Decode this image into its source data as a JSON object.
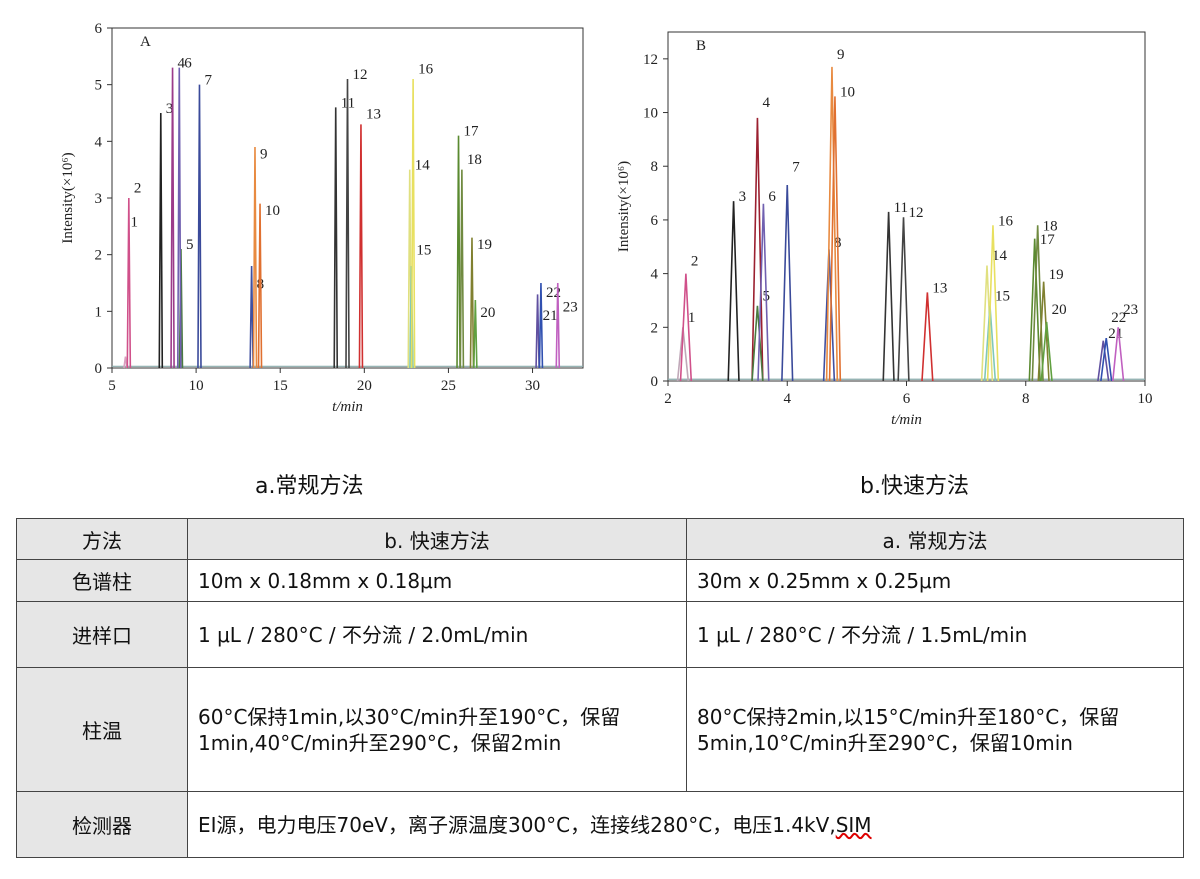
{
  "captions": {
    "a": "a.常规方法",
    "b": "b.快速方法"
  },
  "chart_data": [
    {
      "type": "line",
      "panel_label": "A",
      "ylabel": "Intensity(×10⁶)",
      "xlabel": "t/min",
      "xlim": [
        5,
        33
      ],
      "ylim": [
        0,
        6
      ],
      "xticks": [
        5,
        10,
        15,
        20,
        25,
        30
      ],
      "yticks": [
        0,
        1,
        2,
        3,
        4,
        5,
        6
      ],
      "peaks": [
        {
          "label": "1",
          "x": 5.8,
          "y": 0.2,
          "label_y": 2.5,
          "color": "#d9a0c0"
        },
        {
          "label": "2",
          "x": 6.0,
          "y": 3.0,
          "label_y": 3.1,
          "color": "#d0508a"
        },
        {
          "label": "3",
          "x": 7.9,
          "y": 4.5,
          "label_y": 4.5,
          "color": "#222222"
        },
        {
          "label": "4",
          "x": 8.6,
          "y": 5.3,
          "label_y": 5.3,
          "color": "#9b3b8a"
        },
        {
          "label": "5",
          "x": 9.1,
          "y": 2.1,
          "label_y": 2.1,
          "color": "#4a7a40"
        },
        {
          "label": "6",
          "x": 9.0,
          "y": 5.3,
          "label_y": 5.3,
          "color": "#7060b0"
        },
        {
          "label": "7",
          "x": 10.2,
          "y": 5.0,
          "label_y": 5.0,
          "color": "#3a4a9a"
        },
        {
          "label": "8",
          "x": 13.3,
          "y": 1.8,
          "label_y": 1.4,
          "color": "#4050a0"
        },
        {
          "label": "9",
          "x": 13.5,
          "y": 3.9,
          "label_y": 3.7,
          "color": "#e88a40"
        },
        {
          "label": "10",
          "x": 13.8,
          "y": 2.9,
          "label_y": 2.7,
          "color": "#e07030"
        },
        {
          "label": "11",
          "x": 18.3,
          "y": 4.6,
          "label_y": 4.6,
          "color": "#333333"
        },
        {
          "label": "12",
          "x": 19.0,
          "y": 5.1,
          "label_y": 5.1,
          "color": "#444444"
        },
        {
          "label": "13",
          "x": 19.8,
          "y": 4.3,
          "label_y": 4.4,
          "color": "#d03030"
        },
        {
          "label": "14",
          "x": 22.7,
          "y": 3.5,
          "label_y": 3.5,
          "color": "#e0e080"
        },
        {
          "label": "15",
          "x": 22.8,
          "y": 1.8,
          "label_y": 2.0,
          "color": "#80c8b8"
        },
        {
          "label": "16",
          "x": 22.9,
          "y": 5.1,
          "label_y": 5.2,
          "color": "#e8e060"
        },
        {
          "label": "17",
          "x": 25.6,
          "y": 4.1,
          "label_y": 4.1,
          "color": "#5a8a30"
        },
        {
          "label": "18",
          "x": 25.8,
          "y": 3.5,
          "label_y": 3.6,
          "color": "#708a40"
        },
        {
          "label": "19",
          "x": 26.4,
          "y": 2.3,
          "label_y": 2.1,
          "color": "#808030"
        },
        {
          "label": "20",
          "x": 26.6,
          "y": 1.2,
          "label_y": 0.9,
          "color": "#60a040"
        },
        {
          "label": "21",
          "x": 30.3,
          "y": 1.3,
          "label_y": 0.85,
          "color": "#6050a0"
        },
        {
          "label": "22",
          "x": 30.5,
          "y": 1.5,
          "label_y": 1.25,
          "color": "#3050b0"
        },
        {
          "label": "23",
          "x": 31.5,
          "y": 1.5,
          "label_y": 1.0,
          "color": "#c060c0"
        }
      ]
    },
    {
      "type": "line",
      "panel_label": "B",
      "ylabel": "Intensity(×10⁶)",
      "xlabel": "t/min",
      "xlim": [
        2,
        10
      ],
      "ylim": [
        0,
        13
      ],
      "xticks": [
        2,
        4,
        6,
        8,
        10
      ],
      "yticks": [
        0,
        2,
        4,
        6,
        8,
        10,
        12
      ],
      "peaks": [
        {
          "label": "1",
          "x": 2.25,
          "y": 2.0,
          "label_y": 2.2,
          "color": "#c0a8b8"
        },
        {
          "label": "2",
          "x": 2.3,
          "y": 4.0,
          "label_y": 4.3,
          "color": "#d0508a"
        },
        {
          "label": "3",
          "x": 3.1,
          "y": 6.7,
          "label_y": 6.7,
          "color": "#222222"
        },
        {
          "label": "4",
          "x": 3.5,
          "y": 9.8,
          "label_y": 10.2,
          "color": "#9b2030"
        },
        {
          "label": "5",
          "x": 3.5,
          "y": 2.8,
          "label_y": 3.0,
          "color": "#4a7a40"
        },
        {
          "label": "6",
          "x": 3.6,
          "y": 6.6,
          "label_y": 6.7,
          "color": "#7060b0"
        },
        {
          "label": "7",
          "x": 4.0,
          "y": 7.3,
          "label_y": 7.8,
          "color": "#3a4a9a"
        },
        {
          "label": "8",
          "x": 4.7,
          "y": 4.9,
          "label_y": 5.0,
          "color": "#4050a0"
        },
        {
          "label": "9",
          "x": 4.75,
          "y": 11.7,
          "label_y": 12.0,
          "color": "#e88a40"
        },
        {
          "label": "10",
          "x": 4.8,
          "y": 10.6,
          "label_y": 10.6,
          "color": "#e07030"
        },
        {
          "label": "11",
          "x": 5.7,
          "y": 6.3,
          "label_y": 6.3,
          "color": "#333333"
        },
        {
          "label": "12",
          "x": 5.95,
          "y": 6.1,
          "label_y": 6.1,
          "color": "#444444"
        },
        {
          "label": "13",
          "x": 6.35,
          "y": 3.3,
          "label_y": 3.3,
          "color": "#d03030"
        },
        {
          "label": "14",
          "x": 7.35,
          "y": 4.3,
          "label_y": 4.5,
          "color": "#e0e080"
        },
        {
          "label": "15",
          "x": 7.4,
          "y": 2.8,
          "label_y": 3.0,
          "color": "#80c8b8"
        },
        {
          "label": "16",
          "x": 7.45,
          "y": 5.8,
          "label_y": 5.8,
          "color": "#e8e060"
        },
        {
          "label": "17",
          "x": 8.15,
          "y": 5.3,
          "label_y": 5.1,
          "color": "#5a8a30"
        },
        {
          "label": "18",
          "x": 8.2,
          "y": 5.8,
          "label_y": 5.6,
          "color": "#708a40"
        },
        {
          "label": "19",
          "x": 8.3,
          "y": 3.7,
          "label_y": 3.8,
          "color": "#808030"
        },
        {
          "label": "20",
          "x": 8.35,
          "y": 2.2,
          "label_y": 2.5,
          "color": "#60a040"
        },
        {
          "label": "21",
          "x": 9.3,
          "y": 1.5,
          "label_y": 1.6,
          "color": "#6050a0"
        },
        {
          "label": "22",
          "x": 9.35,
          "y": 1.6,
          "label_y": 2.2,
          "color": "#3050b0"
        },
        {
          "label": "23",
          "x": 9.55,
          "y": 2.0,
          "label_y": 2.5,
          "color": "#c060c0"
        }
      ]
    }
  ],
  "table": {
    "headers": [
      "方法",
      "b. 快速方法",
      "a. 常规方法"
    ],
    "rows": [
      {
        "name": "色谱柱",
        "fast": "10m x 0.18mm x 0.18μm",
        "regular": "30m x 0.25mm x 0.25μm"
      },
      {
        "name": "进样口",
        "fast": "1 μL / 280°C / 不分流 / 2.0mL/min",
        "regular": "1 μL / 280°C / 不分流 / 1.5mL/min"
      },
      {
        "name": "柱温",
        "fast": "60°C保持1min,以30°C/min升至190°C，保留1min,40°C/min升至290°C，保留2min",
        "regular": "80°C保持2min,以15°C/min升至180°C，保留5min,10°C/min升至290°C，保留10min"
      },
      {
        "name": "检测器",
        "fast_prefix": "EI源，电力电压70eV，离子源温度300°C，连接线280°C，电压1.4kV,",
        "fast_suffix": "SIM"
      }
    ]
  }
}
